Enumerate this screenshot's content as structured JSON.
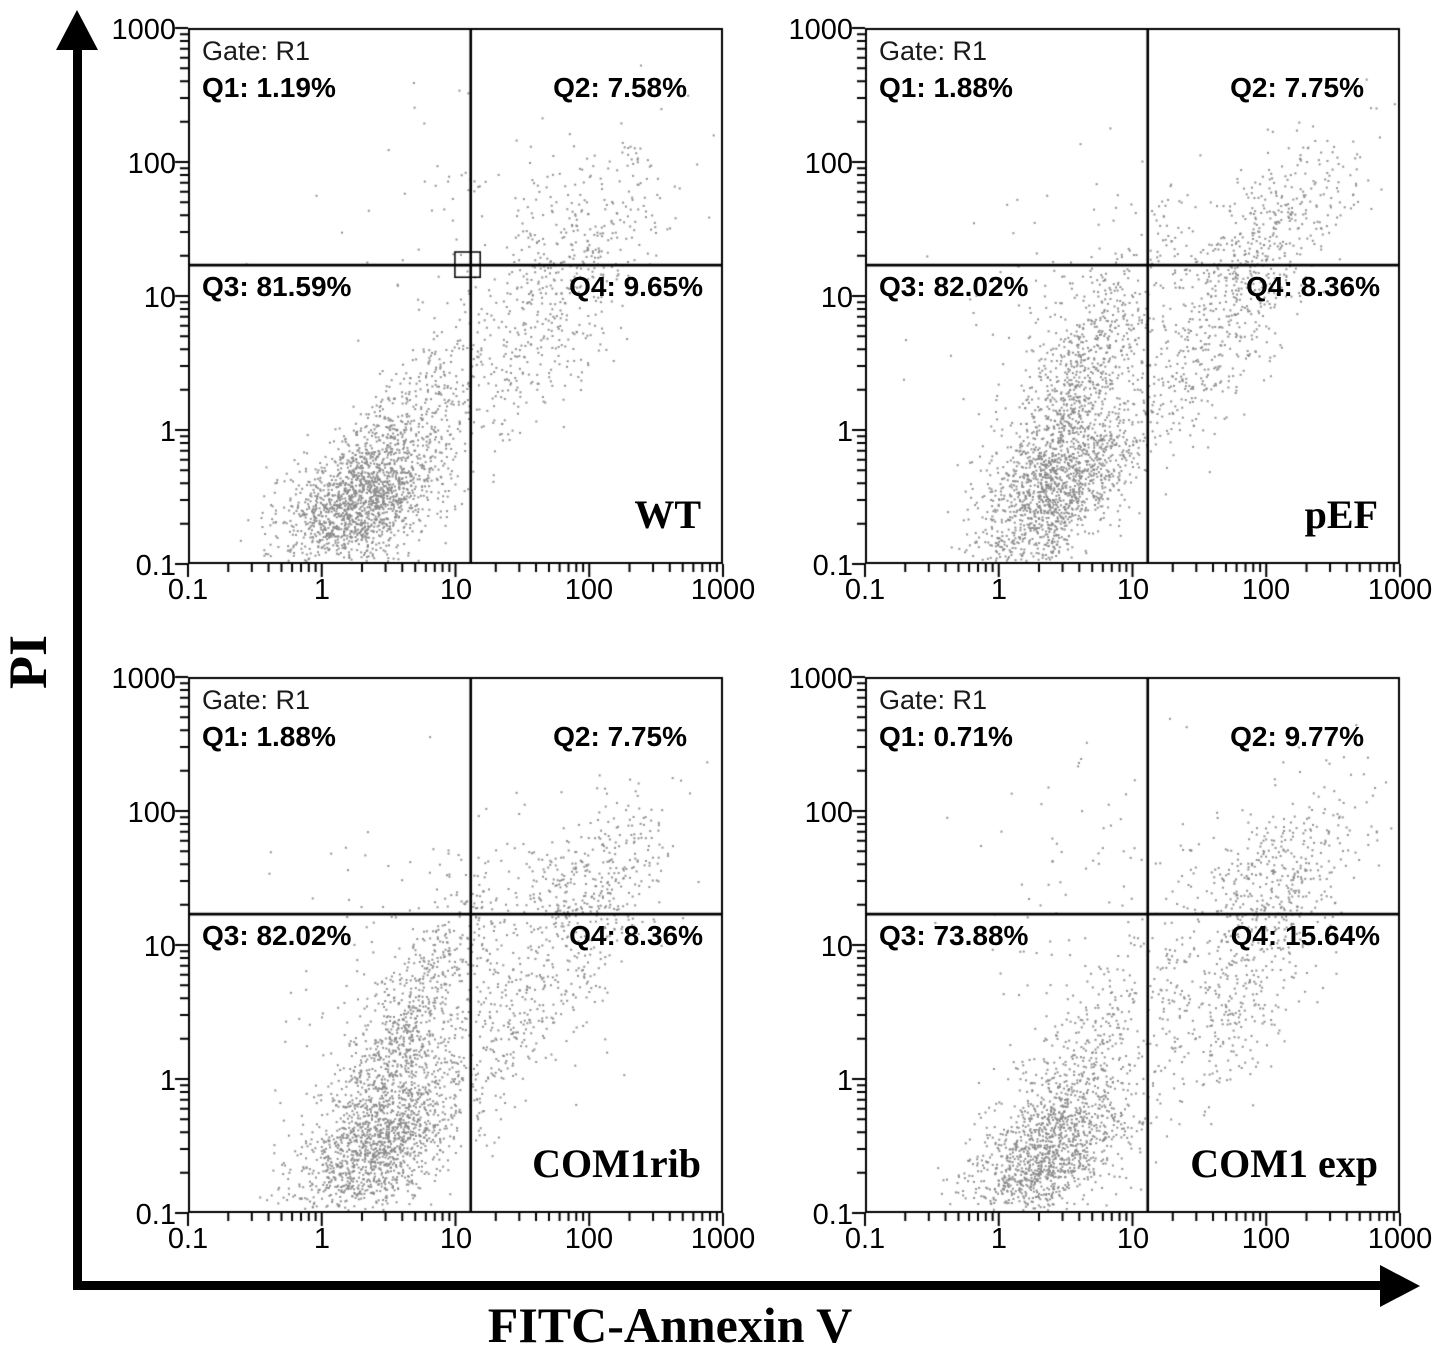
{
  "figure": {
    "y_axis_label": "PI",
    "x_axis_label": "FITC-Annexin V",
    "dot_color": "#8a8a8a",
    "axis_color": "#000000",
    "x_tick_labels": [
      "0.1",
      "1",
      "10",
      "100",
      "1000"
    ],
    "y_tick_labels": [
      "1000",
      "100",
      "10",
      "1",
      "0.1"
    ],
    "tick_values": [
      0.1,
      1,
      10,
      100,
      1000
    ]
  },
  "chart_data": [
    {
      "type": "scatter",
      "panel_label": "WT",
      "gate_text": "Gate: R1",
      "q1_text": "Q1: 1.19%",
      "q2_text": "Q2: 7.58%",
      "q3_text": "Q3: 81.59%",
      "q4_text": "Q4: 9.65%",
      "quadrant_pcts": {
        "Q1": 1.19,
        "Q2": 7.58,
        "Q3": 81.59,
        "Q4": 9.65
      },
      "xlabel": "FITC-Annexin V",
      "ylabel": "PI",
      "x_scale": "log",
      "y_scale": "log",
      "xlim": [
        0.1,
        1000
      ],
      "ylim": [
        0.1,
        1000
      ],
      "gate": {
        "x": 13,
        "y": 17
      },
      "marker_box": {
        "x": [
          9.9,
          15.3
        ],
        "y": [
          13.8,
          21.3
        ]
      },
      "n_points": 2600,
      "seed": 7,
      "clusters": [
        [
          0.3,
          -0.55,
          0.3,
          0.26,
          0.45,
          0.56
        ],
        [
          0.62,
          0.05,
          0.4,
          0.45,
          0.8,
          0.2
        ],
        [
          1.95,
          1.42,
          0.36,
          0.38,
          0.6,
          0.13
        ],
        [
          1.6,
          0.55,
          0.3,
          0.35,
          0.65,
          0.08
        ],
        [
          1.1,
          1.7,
          0.6,
          0.45,
          0.0,
          0.03
        ]
      ]
    },
    {
      "type": "scatter",
      "panel_label": "pEF",
      "gate_text": "Gate: R1",
      "q1_text": "Q1: 1.88%",
      "q2_text": "Q2: 7.75%",
      "q3_text": "Q3: 82.02%",
      "q4_text": "Q4: 8.36%",
      "quadrant_pcts": {
        "Q1": 1.88,
        "Q2": 7.75,
        "Q3": 82.02,
        "Q4": 8.36
      },
      "xlabel": "FITC-Annexin V",
      "ylabel": "PI",
      "x_scale": "log",
      "y_scale": "log",
      "xlim": [
        0.1,
        1000
      ],
      "ylim": [
        0.1,
        1000
      ],
      "gate": {
        "x": 13,
        "y": 17
      },
      "marker_box": null,
      "n_points": 3000,
      "seed": 11,
      "clusters": [
        [
          0.45,
          -0.45,
          0.28,
          0.3,
          0.55,
          0.42
        ],
        [
          0.55,
          0.3,
          0.32,
          0.52,
          0.78,
          0.28
        ],
        [
          2.0,
          1.45,
          0.33,
          0.35,
          0.6,
          0.14
        ],
        [
          1.55,
          0.55,
          0.33,
          0.38,
          0.7,
          0.1
        ],
        [
          0.9,
          0.9,
          0.6,
          0.6,
          0.2,
          0.06
        ]
      ]
    },
    {
      "type": "scatter",
      "panel_label": "COM1rib",
      "gate_text": "Gate: R1",
      "q1_text": "Q1: 1.88%",
      "q2_text": "Q2: 7.75%",
      "q3_text": "Q3: 82.02%",
      "q4_text": "Q4: 8.36%",
      "quadrant_pcts": {
        "Q1": 1.88,
        "Q2": 7.75,
        "Q3": 82.02,
        "Q4": 8.36
      },
      "xlabel": "FITC-Annexin V",
      "ylabel": "PI",
      "x_scale": "log",
      "y_scale": "log",
      "xlim": [
        0.1,
        1000
      ],
      "ylim": [
        0.1,
        1000
      ],
      "gate": {
        "x": 13,
        "y": 17
      },
      "marker_box": null,
      "n_points": 3000,
      "seed": 23,
      "clusters": [
        [
          0.45,
          -0.5,
          0.3,
          0.3,
          0.55,
          0.44
        ],
        [
          0.58,
          0.28,
          0.32,
          0.5,
          0.78,
          0.28
        ],
        [
          2.0,
          1.42,
          0.34,
          0.34,
          0.6,
          0.13
        ],
        [
          1.58,
          0.5,
          0.33,
          0.38,
          0.7,
          0.09
        ],
        [
          0.9,
          0.9,
          0.6,
          0.6,
          0.2,
          0.06
        ]
      ]
    },
    {
      "type": "scatter",
      "panel_label": "COM1 exp",
      "gate_text": "Gate: R1",
      "q1_text": "Q1: 0.71%",
      "q2_text": "Q2: 9.77%",
      "q3_text": "Q3: 73.88%",
      "q4_text": "Q4: 15.64%",
      "quadrant_pcts": {
        "Q1": 0.71,
        "Q2": 9.77,
        "Q3": 73.88,
        "Q4": 15.64
      },
      "xlabel": "FITC-Annexin V",
      "ylabel": "PI",
      "x_scale": "log",
      "y_scale": "log",
      "xlim": [
        0.1,
        1000
      ],
      "ylim": [
        0.1,
        1000
      ],
      "gate": {
        "x": 13,
        "y": 17
      },
      "marker_box": null,
      "n_points": 2400,
      "seed": 41,
      "clusters": [
        [
          0.4,
          -0.55,
          0.3,
          0.27,
          0.5,
          0.46
        ],
        [
          0.62,
          0.1,
          0.38,
          0.5,
          0.8,
          0.18
        ],
        [
          2.1,
          1.5,
          0.33,
          0.33,
          0.55,
          0.18
        ],
        [
          1.75,
          0.55,
          0.33,
          0.4,
          0.65,
          0.13
        ],
        [
          0.9,
          1.2,
          0.6,
          0.6,
          0.1,
          0.05
        ]
      ]
    }
  ]
}
